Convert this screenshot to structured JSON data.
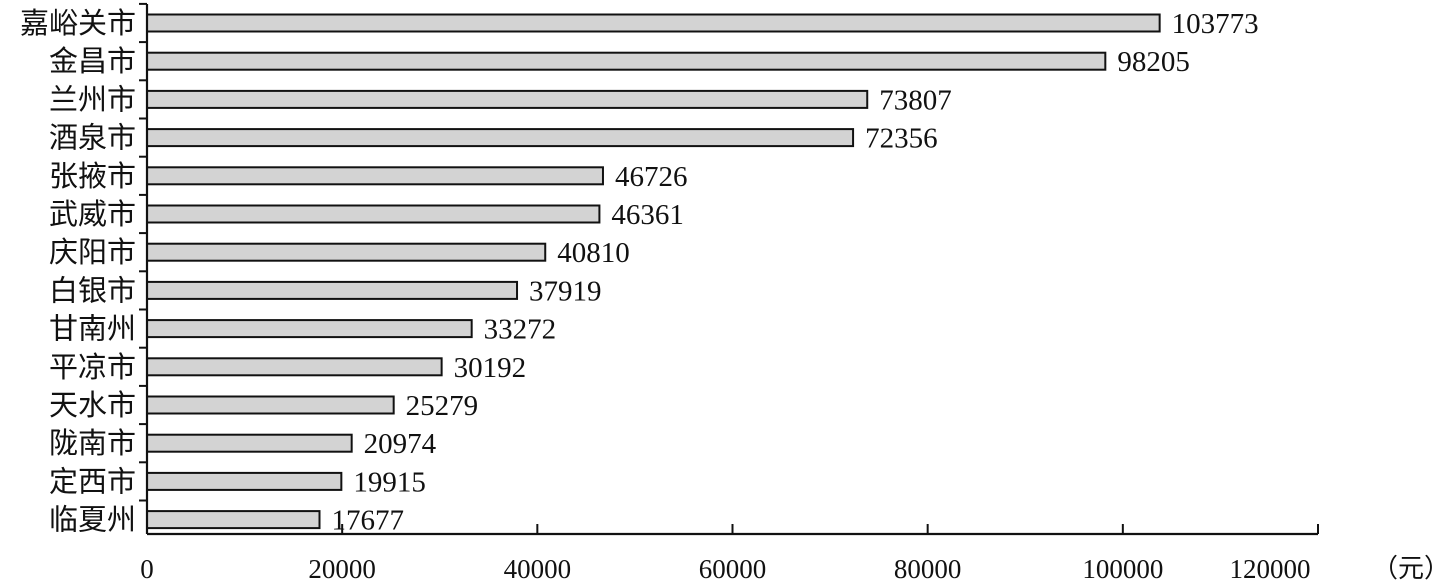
{
  "chart_data": {
    "type": "bar",
    "orientation": "horizontal",
    "categories": [
      "嘉峪关市",
      "金昌市",
      "兰州市",
      "酒泉市",
      "张掖市",
      "武威市",
      "庆阳市",
      "白银市",
      "甘南州",
      "平凉市",
      "天水市",
      "陇南市",
      "定西市",
      "临夏州"
    ],
    "values": [
      103773,
      98205,
      73807,
      72356,
      46726,
      46361,
      40810,
      37919,
      33272,
      30192,
      25279,
      20974,
      19915,
      17677
    ],
    "value_labels": [
      "103773",
      "98205",
      "73807",
      "72356",
      "46726",
      "46361",
      "40810",
      "37919",
      "33272",
      "30192",
      "25279",
      "20974",
      "19915",
      "17677"
    ],
    "xlim": [
      0,
      120000
    ],
    "x_ticks": [
      0,
      20000,
      40000,
      60000,
      80000,
      100000,
      120000
    ],
    "x_tick_labels": [
      "0",
      "20000",
      "40000",
      "60000",
      "80000",
      "100000",
      "120000"
    ],
    "x_unit": "（元）",
    "grid": false,
    "legend": "none",
    "bar_color": "#d3d3d3",
    "bar_edge_color": "#111111"
  }
}
